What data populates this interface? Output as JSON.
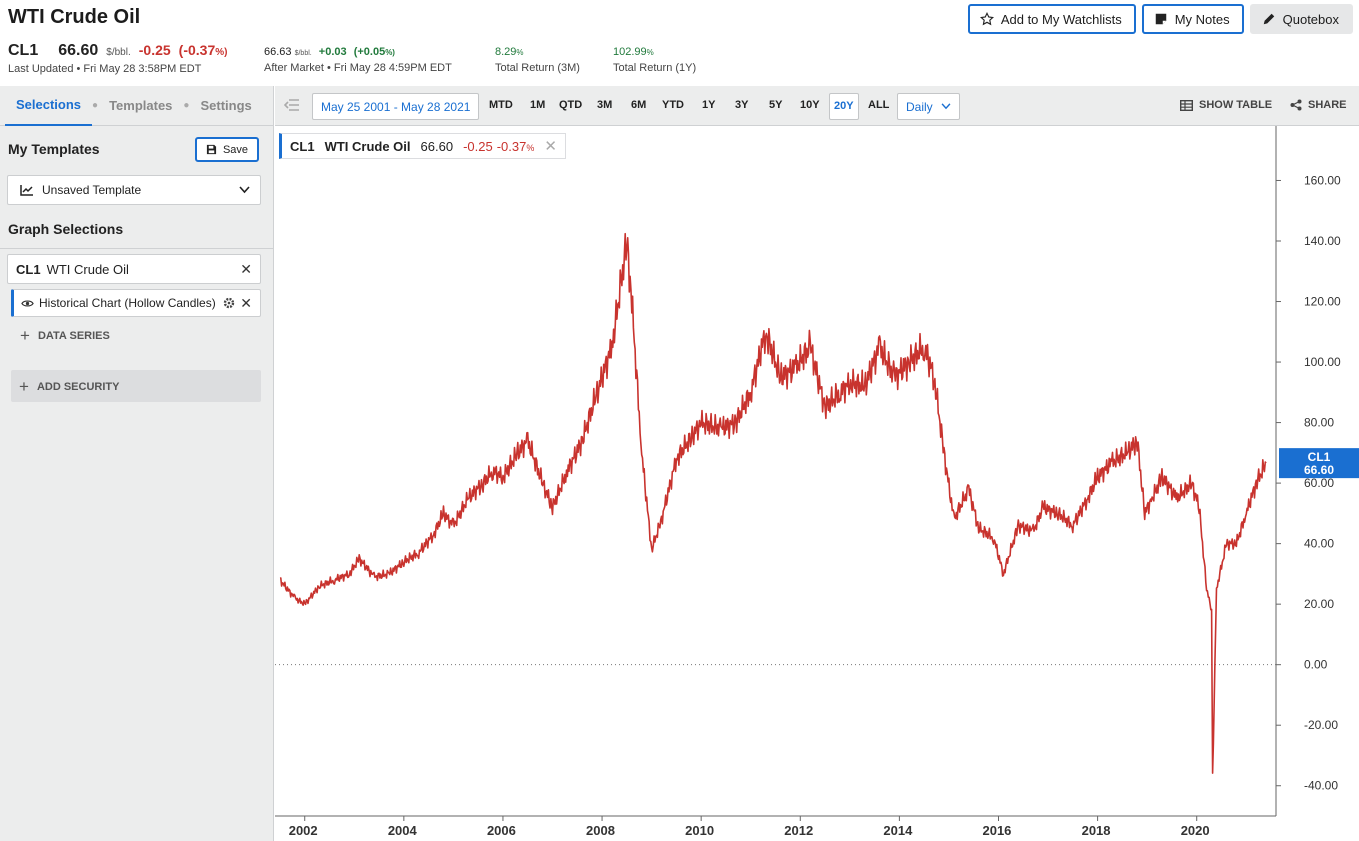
{
  "header": {
    "title": "WTI Crude Oil",
    "watchlist_label": "Add to My Watchlists",
    "notes_label": "My Notes",
    "quotebox_label": "Quotebox"
  },
  "quote": {
    "symbol": "CL1",
    "price": "66.60",
    "unit": "$/bbl.",
    "change": "-0.25",
    "change_pct": "(-0.37",
    "pct_sign": "%)",
    "last_updated": "Last Updated • Fri May 28 3:58PM EDT",
    "after_price": "66.63",
    "after_unit": "$/bbl.",
    "after_change": "+0.03",
    "after_pct": "(+0.05",
    "after_pct_sign": "%)",
    "after_label": "After Market • Fri May 28 4:59PM EDT",
    "ret3m": "8.29",
    "ret3m_label": "Total Return (3M)",
    "ret1y": "102.99",
    "ret1y_label": "Total Return (1Y)",
    "pct": "%"
  },
  "sidebar": {
    "tabs": [
      "Selections",
      "Templates",
      "Settings"
    ],
    "my_templates": "My Templates",
    "save_label": "Save",
    "template_value": "Unsaved Template",
    "graph_selections": "Graph Selections",
    "security_symbol": "CL1",
    "security_name": "WTI Crude Oil",
    "series_name": "Historical Chart (Hollow Candles)",
    "data_series": "DATA SERIES",
    "add_security": "ADD SECURITY"
  },
  "toolbar": {
    "date_range": "May 25 2001 - May 28 2021",
    "timeframes": [
      "MTD",
      "1M",
      "QTD",
      "3M",
      "6M",
      "YTD",
      "1Y",
      "3Y",
      "5Y",
      "10Y",
      "20Y",
      "ALL"
    ],
    "selected_timeframe": "20Y",
    "frequency": "Daily",
    "show_table": "SHOW TABLE",
    "share": "SHARE"
  },
  "legend": {
    "symbol": "CL1",
    "name": "WTI Crude Oil",
    "price": "66.60",
    "change": "-0.25",
    "change_pct": "-0.37",
    "pct": "%"
  },
  "colors": {
    "accent": "#1a6fd1",
    "series": "#c8332e",
    "negative": "#c8332e",
    "positive": "#217a3c"
  },
  "chart_data": {
    "type": "line",
    "series": [
      {
        "name": "CL1",
        "x": [
          2001.5,
          2001.8,
          2002.0,
          2002.3,
          2002.6,
          2002.9,
          2003.1,
          2003.4,
          2003.7,
          2004.0,
          2004.3,
          2004.6,
          2004.8,
          2005.0,
          2005.3,
          2005.6,
          2005.8,
          2006.0,
          2006.3,
          2006.5,
          2006.8,
          2007.0,
          2007.3,
          2007.6,
          2007.9,
          2008.2,
          2008.5,
          2008.6,
          2008.8,
          2009.0,
          2009.2,
          2009.5,
          2009.8,
          2010.0,
          2010.4,
          2010.7,
          2011.0,
          2011.3,
          2011.6,
          2011.9,
          2012.2,
          2012.5,
          2012.8,
          2013.0,
          2013.3,
          2013.6,
          2013.9,
          2014.2,
          2014.5,
          2014.7,
          2014.9,
          2015.1,
          2015.4,
          2015.6,
          2015.9,
          2016.1,
          2016.4,
          2016.7,
          2016.9,
          2017.2,
          2017.5,
          2017.8,
          2018.0,
          2018.3,
          2018.6,
          2018.8,
          2018.95,
          2019.1,
          2019.3,
          2019.6,
          2019.9,
          2020.05,
          2020.2,
          2020.3,
          2020.32,
          2020.4,
          2020.6,
          2020.8,
          2021.0,
          2021.2,
          2021.4
        ],
        "values": [
          28,
          22,
          20,
          26,
          28,
          30,
          35,
          29,
          30,
          34,
          37,
          43,
          50,
          46,
          55,
          60,
          64,
          62,
          70,
          74,
          60,
          52,
          64,
          74,
          90,
          105,
          140,
          120,
          70,
          38,
          48,
          68,
          75,
          80,
          78,
          80,
          90,
          110,
          95,
          98,
          105,
          85,
          90,
          93,
          92,
          105,
          95,
          100,
          105,
          95,
          70,
          48,
          58,
          45,
          42,
          30,
          46,
          44,
          52,
          50,
          46,
          55,
          62,
          67,
          70,
          74,
          50,
          55,
          62,
          55,
          60,
          52,
          25,
          18,
          -37,
          25,
          40,
          40,
          50,
          60,
          66.6
        ]
      }
    ],
    "xticks": [
      "2002",
      "2004",
      "2006",
      "2008",
      "2010",
      "2012",
      "2014",
      "2016",
      "2018",
      "2020"
    ],
    "yticks": [
      "160.00",
      "140.00",
      "120.00",
      "100.00",
      "80.00",
      "60.00",
      "40.00",
      "20.00",
      "0.00",
      "-20.00",
      "-40.00"
    ],
    "last_label_symbol": "CL1",
    "last_label_value": "66.60",
    "xlim": [
      2001.4,
      2021.6
    ],
    "ylim": [
      -50,
      178
    ]
  }
}
